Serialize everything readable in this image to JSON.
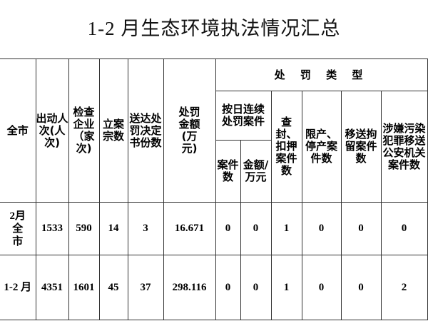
{
  "title": "1-2 月生态环境执法情况汇总",
  "headers": {
    "region": "全市",
    "dispatched": "出动人次(人次)",
    "inspected": "检查企业（家次)",
    "cases_filed": "立案宗数",
    "decisions": "送达处罚决定书份数",
    "fine_amount": "处罚金额(万元)",
    "penalty_type": "处 罚 类 型",
    "daily_penalty": "按日连续处罚案件",
    "daily_count": "案件数",
    "daily_amount": "金额/万元",
    "seizure": "查封、扣押案件数",
    "production_limit": "限产、停产案件数",
    "detention": "移送拘留案件数",
    "criminal": "涉嫌污染犯罪移送公安机关案件数"
  },
  "rows": [
    {
      "label": "2月全市",
      "values": [
        "1533",
        "590",
        "14",
        "3",
        "16.671",
        "0",
        "0",
        "1",
        "0",
        "0",
        "0"
      ]
    },
    {
      "label": "1-2 月",
      "values": [
        "4351",
        "1601",
        "45",
        "37",
        "298.116",
        "0",
        "0",
        "1",
        "0",
        "0",
        "2"
      ]
    }
  ]
}
